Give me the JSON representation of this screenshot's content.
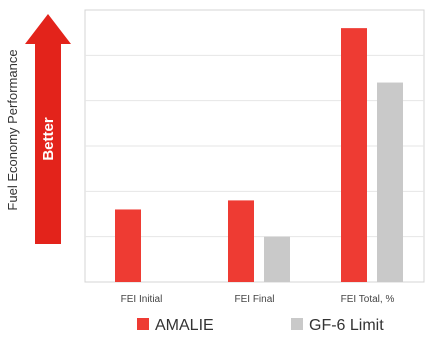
{
  "chart_data": {
    "type": "bar",
    "ylabel": "Fuel Economy Performance",
    "arrow_label": "Better",
    "categories": [
      "FEI Initial",
      "FEI Final",
      "FEI Total, %"
    ],
    "series": [
      {
        "name": "AMALIE",
        "color": "#ee3b33",
        "values": [
          1.6,
          1.8,
          5.6
        ]
      },
      {
        "name": "GF-6 Limit",
        "color": "#c9c9c9",
        "values": [
          null,
          1.0,
          4.4
        ]
      }
    ],
    "ylim": [
      0,
      6
    ],
    "grid": true,
    "legend_position": "bottom"
  },
  "colors": {
    "arrow": "#e3231b",
    "grid": "#e6e6e6",
    "border": "#d4d4d4"
  }
}
